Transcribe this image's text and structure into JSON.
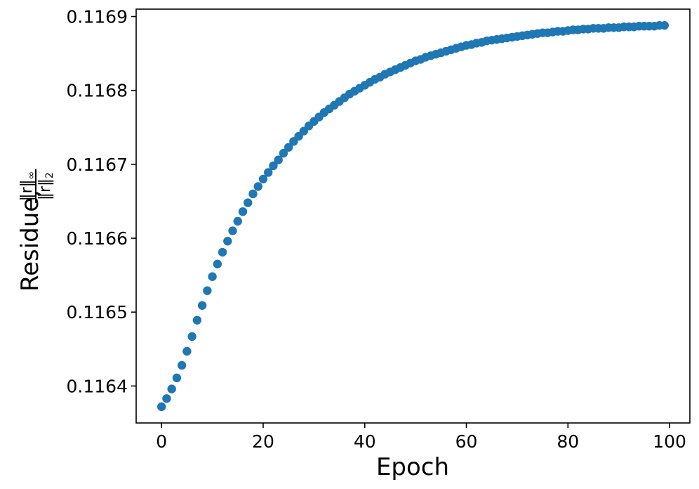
{
  "chart_data": {
    "type": "scatter",
    "xlabel": "Epoch",
    "ylabel": "Residue,",
    "ylabel_fraction": {
      "numerator": "‖r‖",
      "numerator_sub": "∞",
      "denominator": "‖r‖",
      "denominator_sub": "2"
    },
    "xlim": [
      -5,
      104
    ],
    "ylim": [
      0.11635,
      0.11691
    ],
    "xticks": [
      0,
      20,
      40,
      60,
      80,
      100
    ],
    "xtick_labels": [
      "0",
      "20",
      "40",
      "60",
      "80",
      "100"
    ],
    "yticks": [
      0.1164,
      0.1165,
      0.1166,
      0.1167,
      0.1168,
      0.1169
    ],
    "ytick_labels": [
      "0.1164",
      "0.1165",
      "0.1166",
      "0.1167",
      "0.1168",
      "0.1169"
    ],
    "grid": false,
    "color": "#1f77b4",
    "series": [
      {
        "x": [
          0,
          1,
          2,
          3,
          4,
          5,
          6,
          7,
          8,
          9,
          10,
          11,
          12,
          13,
          14,
          15,
          16,
          17,
          18,
          19,
          20,
          21,
          22,
          23,
          24,
          25,
          26,
          27,
          28,
          29,
          30,
          31,
          32,
          33,
          34,
          35,
          36,
          37,
          38,
          39,
          40,
          41,
          42,
          43,
          44,
          45,
          46,
          47,
          48,
          49,
          50,
          51,
          52,
          53,
          54,
          55,
          56,
          57,
          58,
          59,
          60,
          61,
          62,
          63,
          64,
          65,
          66,
          67,
          68,
          69,
          70,
          71,
          72,
          73,
          74,
          75,
          76,
          77,
          78,
          79,
          80,
          81,
          82,
          83,
          84,
          85,
          86,
          87,
          88,
          89,
          90,
          91,
          92,
          93,
          94,
          95,
          96,
          97,
          98,
          99
        ],
        "y": [
          0.116372,
          0.116383,
          0.116396,
          0.116411,
          0.116428,
          0.116447,
          0.116467,
          0.116489,
          0.116509,
          0.116529,
          0.116548,
          0.116565,
          0.116581,
          0.116596,
          0.11661,
          0.116623,
          0.116636,
          0.116648,
          0.11666,
          0.11667,
          0.11668,
          0.116689,
          0.116698,
          0.116706,
          0.116715,
          0.116723,
          0.116731,
          0.116738,
          0.116745,
          0.116752,
          0.116758,
          0.116764,
          0.11677,
          0.116775,
          0.11678,
          0.116785,
          0.11679,
          0.116795,
          0.116799,
          0.116803,
          0.116807,
          0.116811,
          0.116815,
          0.116818,
          0.116822,
          0.116825,
          0.116828,
          0.116831,
          0.116834,
          0.116837,
          0.11684,
          0.116842,
          0.116845,
          0.116847,
          0.116849,
          0.116851,
          0.116853,
          0.116855,
          0.116857,
          0.116859,
          0.116861,
          0.116862,
          0.116864,
          0.116865,
          0.116867,
          0.116868,
          0.116869,
          0.11687,
          0.116871,
          0.116872,
          0.116873,
          0.116874,
          0.116875,
          0.116876,
          0.116877,
          0.116878,
          0.116878,
          0.116879,
          0.11688,
          0.11688,
          0.116881,
          0.116882,
          0.116882,
          0.116883,
          0.116883,
          0.116884,
          0.116884,
          0.116884,
          0.116885,
          0.116885,
          0.116885,
          0.116886,
          0.116886,
          0.116886,
          0.116887,
          0.116887,
          0.116887,
          0.116887,
          0.116888,
          0.116888
        ]
      }
    ]
  }
}
